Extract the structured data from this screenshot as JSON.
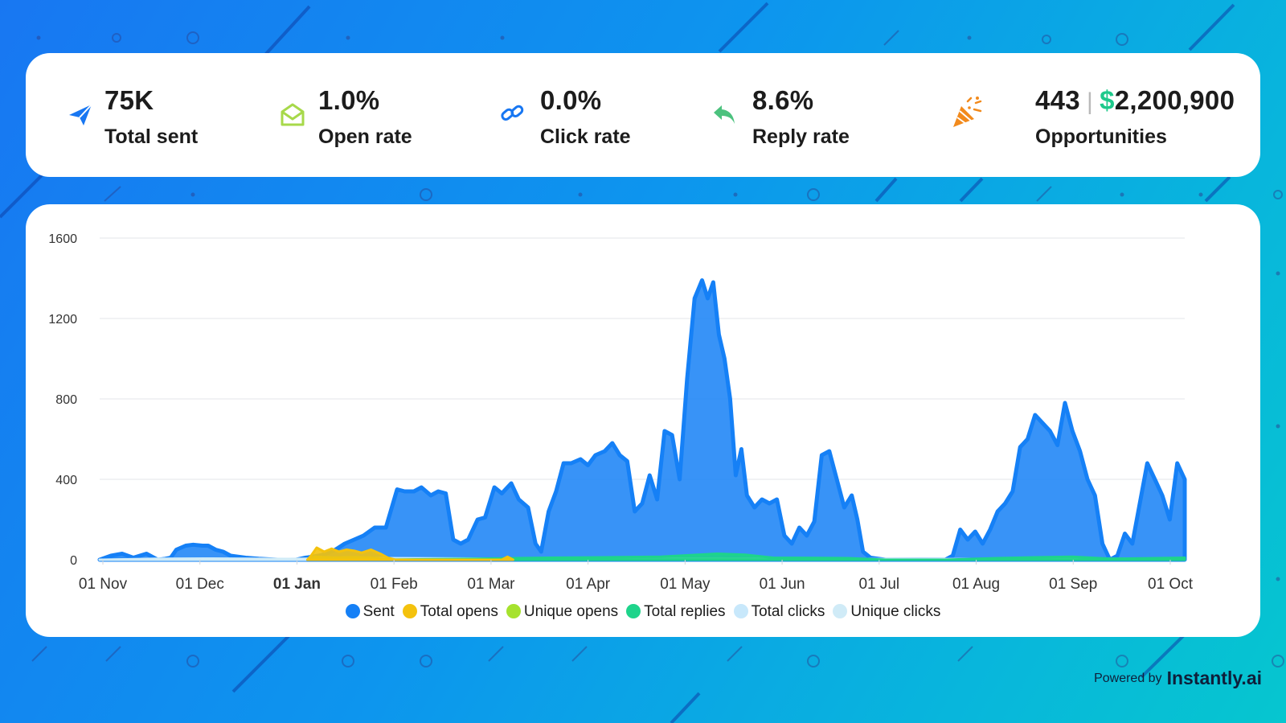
{
  "stats": {
    "total_sent": {
      "value": "75K",
      "label": "Total sent",
      "icon": "paper-plane-icon",
      "color": "#1877f2"
    },
    "open_rate": {
      "value": "1.0%",
      "label": "Open rate",
      "icon": "open-envelope-icon",
      "color": "#a7d94a"
    },
    "click_rate": {
      "value": "0.0%",
      "label": "Click rate",
      "icon": "link-icon",
      "color": "#1877f2"
    },
    "reply_rate": {
      "value": "8.6%",
      "label": "Reply rate",
      "icon": "reply-arrow-icon",
      "color": "#4cc27e"
    },
    "opportunities": {
      "count": "443",
      "separator": "|",
      "currency": "$",
      "amount": "2,200,900",
      "label": "Opportunities",
      "icon": "party-popper-icon",
      "color": "#f28a1c"
    }
  },
  "footer": {
    "powered_prefix": "Powered by",
    "brand": "Instantly.ai"
  },
  "chart_data": {
    "type": "area",
    "title": "",
    "xlabel": "",
    "ylabel": "",
    "ylim": [
      0,
      1600
    ],
    "yticks": [
      "0",
      "400",
      "800",
      "1200",
      "1600"
    ],
    "xticks": [
      "01 Nov",
      "01 Dec",
      "01 Jan",
      "01 Feb",
      "01 Mar",
      "01 Apr",
      "01 May",
      "01 Jun",
      "01 Jul",
      "01 Aug",
      "01 Sep",
      "01 Oct"
    ],
    "xtick_bold": "01 Jan",
    "grid": true,
    "legend_position": "bottom",
    "series": [
      {
        "name": "Sent",
        "color": "#1580f6",
        "points": [
          [
            0,
            0
          ],
          [
            6,
            20
          ],
          [
            12,
            30
          ],
          [
            18,
            10
          ],
          [
            25,
            30
          ],
          [
            31,
            0
          ],
          [
            35,
            5
          ],
          [
            38,
            10
          ],
          [
            41,
            50
          ],
          [
            46,
            70
          ],
          [
            50,
            75
          ],
          [
            55,
            70
          ],
          [
            58,
            70
          ],
          [
            62,
            50
          ],
          [
            66,
            40
          ],
          [
            70,
            20
          ],
          [
            78,
            10
          ],
          [
            85,
            5
          ],
          [
            95,
            0
          ],
          [
            105,
            0
          ],
          [
            110,
            10
          ],
          [
            117,
            20
          ],
          [
            121,
            30
          ],
          [
            126,
            50
          ],
          [
            131,
            80
          ],
          [
            136,
            100
          ],
          [
            141,
            120
          ],
          [
            147,
            160
          ],
          [
            153,
            160
          ],
          [
            159,
            350
          ],
          [
            163,
            340
          ],
          [
            168,
            340
          ],
          [
            172,
            360
          ],
          [
            177,
            320
          ],
          [
            181,
            340
          ],
          [
            185,
            330
          ],
          [
            189,
            100
          ],
          [
            193,
            80
          ],
          [
            197,
            100
          ],
          [
            202,
            200
          ],
          [
            206,
            210
          ],
          [
            211,
            360
          ],
          [
            215,
            330
          ],
          [
            220,
            380
          ],
          [
            224,
            300
          ],
          [
            229,
            260
          ],
          [
            233,
            80
          ],
          [
            236,
            40
          ],
          [
            240,
            240
          ],
          [
            244,
            340
          ],
          [
            248,
            480
          ],
          [
            252,
            480
          ],
          [
            257,
            500
          ],
          [
            261,
            470
          ],
          [
            265,
            520
          ],
          [
            270,
            540
          ],
          [
            274,
            580
          ],
          [
            278,
            520
          ],
          [
            282,
            490
          ],
          [
            286,
            240
          ],
          [
            290,
            280
          ],
          [
            294,
            420
          ],
          [
            298,
            300
          ],
          [
            302,
            640
          ],
          [
            306,
            620
          ],
          [
            310,
            400
          ],
          [
            314,
            900
          ],
          [
            318,
            1300
          ],
          [
            322,
            1390
          ],
          [
            325,
            1300
          ],
          [
            328,
            1380
          ],
          [
            331,
            1120
          ],
          [
            334,
            1000
          ],
          [
            337,
            800
          ],
          [
            340,
            420
          ],
          [
            343,
            550
          ],
          [
            346,
            320
          ],
          [
            350,
            260
          ],
          [
            354,
            300
          ],
          [
            358,
            280
          ],
          [
            362,
            300
          ],
          [
            366,
            120
          ],
          [
            370,
            80
          ],
          [
            374,
            160
          ],
          [
            378,
            120
          ],
          [
            382,
            190
          ],
          [
            386,
            520
          ],
          [
            390,
            540
          ],
          [
            394,
            400
          ],
          [
            398,
            260
          ],
          [
            402,
            320
          ],
          [
            405,
            200
          ],
          [
            408,
            40
          ],
          [
            412,
            10
          ],
          [
            420,
            0
          ],
          [
            440,
            0
          ],
          [
            452,
            0
          ],
          [
            456,
            20
          ],
          [
            460,
            150
          ],
          [
            464,
            100
          ],
          [
            468,
            140
          ],
          [
            472,
            80
          ],
          [
            476,
            150
          ],
          [
            480,
            240
          ],
          [
            484,
            280
          ],
          [
            488,
            340
          ],
          [
            492,
            560
          ],
          [
            496,
            600
          ],
          [
            500,
            720
          ],
          [
            504,
            680
          ],
          [
            508,
            640
          ],
          [
            512,
            570
          ],
          [
            516,
            780
          ],
          [
            520,
            640
          ],
          [
            524,
            540
          ],
          [
            528,
            400
          ],
          [
            532,
            320
          ],
          [
            536,
            80
          ],
          [
            540,
            0
          ],
          [
            544,
            20
          ],
          [
            548,
            130
          ],
          [
            552,
            80
          ],
          [
            556,
            280
          ],
          [
            560,
            480
          ],
          [
            564,
            400
          ],
          [
            568,
            320
          ],
          [
            572,
            200
          ],
          [
            576,
            480
          ],
          [
            580,
            400
          ]
        ]
      },
      {
        "name": "Total opens",
        "color": "#f4c20d",
        "points": [
          [
            111,
            0
          ],
          [
            113,
            20
          ],
          [
            116,
            60
          ],
          [
            120,
            40
          ],
          [
            124,
            55
          ],
          [
            128,
            40
          ],
          [
            132,
            50
          ],
          [
            136,
            45
          ],
          [
            140,
            35
          ],
          [
            145,
            50
          ],
          [
            150,
            30
          ],
          [
            154,
            10
          ],
          [
            158,
            0
          ],
          [
            215,
            0
          ],
          [
            218,
            15
          ],
          [
            221,
            0
          ]
        ]
      },
      {
        "name": "Unique opens",
        "color": "#a6e22e",
        "points": [
          [
            111,
            0
          ],
          [
            115,
            15
          ],
          [
            125,
            10
          ],
          [
            135,
            12
          ],
          [
            145,
            10
          ],
          [
            155,
            0
          ]
        ]
      },
      {
        "name": "Total replies",
        "color": "#1ed48b",
        "points": [
          [
            150,
            0
          ],
          [
            200,
            5
          ],
          [
            240,
            10
          ],
          [
            270,
            12
          ],
          [
            300,
            15
          ],
          [
            320,
            25
          ],
          [
            330,
            30
          ],
          [
            345,
            25
          ],
          [
            360,
            10
          ],
          [
            400,
            8
          ],
          [
            420,
            0
          ],
          [
            452,
            0
          ],
          [
            480,
            8
          ],
          [
            500,
            12
          ],
          [
            520,
            15
          ],
          [
            540,
            5
          ],
          [
            580,
            10
          ]
        ]
      },
      {
        "name": "Total clicks",
        "color": "#c8e8fb",
        "points": [
          [
            0,
            0
          ],
          [
            30,
            5
          ],
          [
            60,
            6
          ],
          [
            100,
            4
          ],
          [
            150,
            8
          ],
          [
            200,
            6
          ],
          [
            250,
            4
          ],
          [
            300,
            6
          ],
          [
            350,
            5
          ],
          [
            400,
            4
          ],
          [
            450,
            3
          ],
          [
            500,
            5
          ],
          [
            580,
            4
          ]
        ]
      },
      {
        "name": "Unique clicks",
        "color": "#d0ebf7",
        "points": [
          [
            0,
            0
          ],
          [
            60,
            4
          ],
          [
            120,
            3
          ],
          [
            180,
            4
          ],
          [
            240,
            2
          ],
          [
            300,
            4
          ],
          [
            360,
            3
          ],
          [
            420,
            2
          ],
          [
            480,
            3
          ],
          [
            580,
            2
          ]
        ]
      }
    ]
  }
}
